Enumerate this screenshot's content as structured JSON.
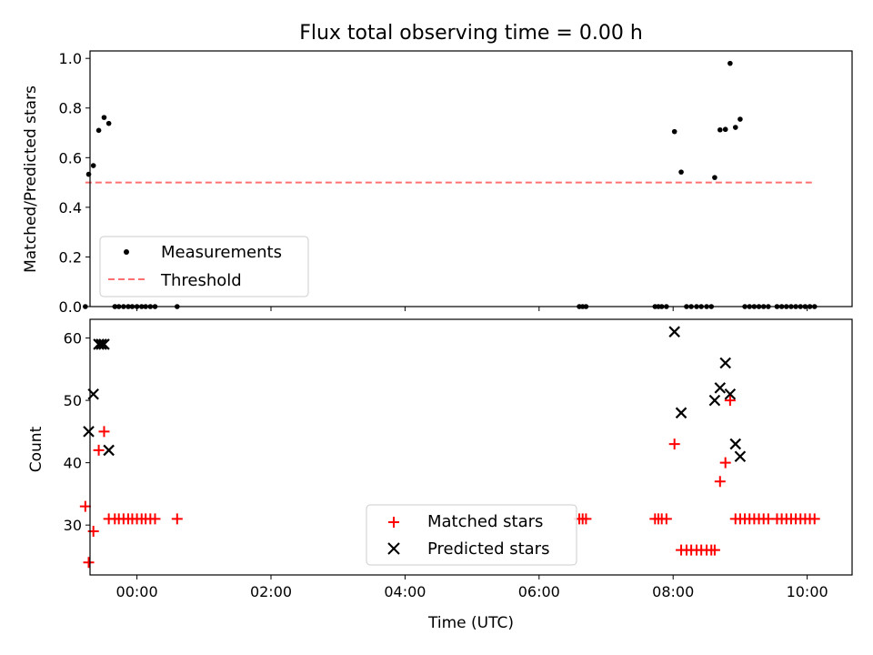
{
  "chart_data": [
    {
      "type": "scatter",
      "title": "Flux total observing time = 0.00 h",
      "xlabel": "",
      "ylabel": "Matched/Predicted stars",
      "xlim": [
        -0.7,
        10.67
      ],
      "ylim": [
        0,
        1.03
      ],
      "yticks": [
        0.0,
        0.2,
        0.4,
        0.6,
        0.8,
        1.0
      ],
      "ytick_labels": [
        "0.0",
        "0.2",
        "0.4",
        "0.6",
        "0.8",
        "1.0"
      ],
      "grid": false,
      "legend_position": "lower-left",
      "series": [
        {
          "name": "Measurements",
          "marker": "dot",
          "color": "#000000",
          "points": [
            [
              -0.77,
              0.0
            ],
            [
              -0.72,
              0.533
            ],
            [
              -0.65,
              0.568
            ],
            [
              -0.57,
              0.71
            ],
            [
              -0.49,
              0.762
            ],
            [
              -0.42,
              0.738
            ],
            [
              -0.33,
              0.0
            ],
            [
              -0.27,
              0.0
            ],
            [
              -0.2,
              0.0
            ],
            [
              -0.13,
              0.0
            ],
            [
              -0.07,
              0.0
            ],
            [
              0.0,
              0.0
            ],
            [
              0.07,
              0.0
            ],
            [
              0.13,
              0.0
            ],
            [
              0.2,
              0.0
            ],
            [
              0.27,
              0.0
            ],
            [
              0.6,
              0.0
            ],
            [
              6.6,
              0.0
            ],
            [
              6.65,
              0.0
            ],
            [
              6.7,
              0.0
            ],
            [
              7.73,
              0.0
            ],
            [
              7.78,
              0.0
            ],
            [
              7.83,
              0.0
            ],
            [
              7.9,
              0.0
            ],
            [
              8.02,
              0.705
            ],
            [
              8.12,
              0.542
            ],
            [
              8.2,
              0.0
            ],
            [
              8.27,
              0.0
            ],
            [
              8.35,
              0.0
            ],
            [
              8.42,
              0.0
            ],
            [
              8.5,
              0.0
            ],
            [
              8.57,
              0.0
            ],
            [
              8.62,
              0.52
            ],
            [
              8.7,
              0.712
            ],
            [
              8.78,
              0.714
            ],
            [
              8.85,
              0.98
            ],
            [
              8.93,
              0.722
            ],
            [
              9.0,
              0.755
            ],
            [
              9.07,
              0.0
            ],
            [
              9.14,
              0.0
            ],
            [
              9.21,
              0.0
            ],
            [
              9.28,
              0.0
            ],
            [
              9.35,
              0.0
            ],
            [
              9.42,
              0.0
            ],
            [
              9.55,
              0.0
            ],
            [
              9.62,
              0.0
            ],
            [
              9.69,
              0.0
            ],
            [
              9.76,
              0.0
            ],
            [
              9.83,
              0.0
            ],
            [
              9.9,
              0.0
            ],
            [
              9.97,
              0.0
            ],
            [
              10.04,
              0.0
            ],
            [
              10.11,
              0.0
            ]
          ]
        },
        {
          "name": "Threshold",
          "line": "dashed",
          "color": "#ff7070",
          "points": [
            [
              -0.77,
              0.5
            ],
            [
              10.07,
              0.5
            ]
          ]
        }
      ]
    },
    {
      "type": "scatter",
      "title": "",
      "xlabel": "Time (UTC)",
      "ylabel": "Count",
      "xlim": [
        -0.7,
        10.67
      ],
      "ylim": [
        22,
        63
      ],
      "yticks": [
        30,
        40,
        50,
        60
      ],
      "ytick_labels": [
        "30",
        "40",
        "50",
        "60"
      ],
      "xticks": [
        0,
        2,
        4,
        6,
        8,
        10
      ],
      "xtick_labels": [
        "00:00",
        "02:00",
        "04:00",
        "06:00",
        "08:00",
        "10:00"
      ],
      "grid": false,
      "legend_position": "lower-center",
      "series": [
        {
          "name": "Matched stars",
          "marker": "plus",
          "color": "#ff0000",
          "points": [
            [
              -0.77,
              33
            ],
            [
              -0.72,
              24
            ],
            [
              -0.65,
              29
            ],
            [
              -0.57,
              42
            ],
            [
              -0.49,
              45
            ],
            [
              -0.42,
              31
            ],
            [
              -0.33,
              31
            ],
            [
              -0.27,
              31
            ],
            [
              -0.2,
              31
            ],
            [
              -0.13,
              31
            ],
            [
              -0.07,
              31
            ],
            [
              0.0,
              31
            ],
            [
              0.07,
              31
            ],
            [
              0.13,
              31
            ],
            [
              0.2,
              31
            ],
            [
              0.27,
              31
            ],
            [
              0.6,
              31
            ],
            [
              6.6,
              31
            ],
            [
              6.65,
              31
            ],
            [
              6.7,
              31
            ],
            [
              7.73,
              31
            ],
            [
              7.78,
              31
            ],
            [
              7.83,
              31
            ],
            [
              7.9,
              31
            ],
            [
              8.02,
              43
            ],
            [
              8.12,
              26
            ],
            [
              8.2,
              26
            ],
            [
              8.27,
              26
            ],
            [
              8.35,
              26
            ],
            [
              8.42,
              26
            ],
            [
              8.5,
              26
            ],
            [
              8.57,
              26
            ],
            [
              8.62,
              26
            ],
            [
              8.7,
              37
            ],
            [
              8.78,
              40
            ],
            [
              8.85,
              50
            ],
            [
              8.93,
              31
            ],
            [
              9.0,
              31
            ],
            [
              9.07,
              31
            ],
            [
              9.14,
              31
            ],
            [
              9.21,
              31
            ],
            [
              9.28,
              31
            ],
            [
              9.35,
              31
            ],
            [
              9.42,
              31
            ],
            [
              9.55,
              31
            ],
            [
              9.62,
              31
            ],
            [
              9.69,
              31
            ],
            [
              9.76,
              31
            ],
            [
              9.83,
              31
            ],
            [
              9.9,
              31
            ],
            [
              9.97,
              31
            ],
            [
              10.04,
              31
            ],
            [
              10.11,
              31
            ]
          ]
        },
        {
          "name": "Predicted stars",
          "marker": "x",
          "color": "#000000",
          "points": [
            [
              -0.72,
              45
            ],
            [
              -0.65,
              51
            ],
            [
              -0.57,
              59
            ],
            [
              -0.53,
              59
            ],
            [
              -0.49,
              59
            ],
            [
              -0.42,
              42
            ],
            [
              8.02,
              61
            ],
            [
              8.12,
              48
            ],
            [
              8.62,
              50
            ],
            [
              8.7,
              52
            ],
            [
              8.78,
              56
            ],
            [
              8.85,
              51
            ],
            [
              8.93,
              43
            ],
            [
              9.0,
              41
            ]
          ]
        }
      ]
    }
  ]
}
